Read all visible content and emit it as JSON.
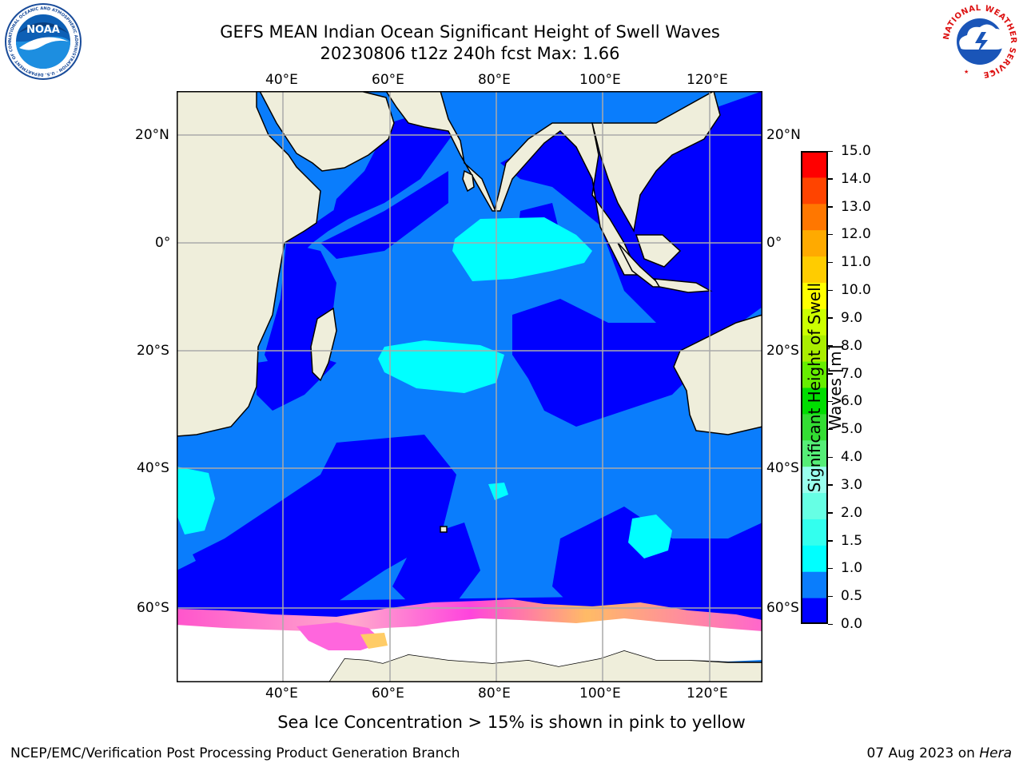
{
  "header": {
    "title_line1": "GEFS MEAN Indian Ocean Significant Height of Swell Waves",
    "title_line2": "20230806 t12z 240h fcst   Max: 1.66"
  },
  "logos": {
    "left": {
      "name": "noaa-logo",
      "text": "NOAA",
      "ring_text": "NATIONAL OCEANIC AND ATMOSPHERIC ADMINISTRATION · U.S. DEPARTMENT OF COMMERCE"
    },
    "right": {
      "name": "national-weather-service-logo",
      "ring_text": "NATIONAL WEATHER SERVICE"
    }
  },
  "map": {
    "lon_range": [
      20,
      130
    ],
    "lat_range": [
      -70,
      28
    ],
    "lon_ticks": [
      {
        "value": 40,
        "label": "40°E"
      },
      {
        "value": 60,
        "label": "60°E"
      },
      {
        "value": 80,
        "label": "80°E"
      },
      {
        "value": 100,
        "label": "100°E"
      },
      {
        "value": 120,
        "label": "120°E"
      }
    ],
    "lat_ticks": [
      {
        "value": 20,
        "label": "20°N"
      },
      {
        "value": 0,
        "label": "0°"
      },
      {
        "value": -20,
        "label": "20°S"
      },
      {
        "value": -40,
        "label": "40°S"
      },
      {
        "value": -60,
        "label": "60°S"
      }
    ],
    "gridlines": true,
    "colors": {
      "land": "#efeedb",
      "coast": "#000000",
      "grid": "#aaaaaa",
      "ice": "#ffffff",
      "ice_edge": [
        "#ff33dd",
        "#ff88cc",
        "#ffcc55",
        "#ff66aa"
      ]
    },
    "note": "Sea Ice Concentration > 15% is shown in pink to yellow"
  },
  "colorbar": {
    "title_line1": "Significant Height of Swell",
    "title_line2": "Waves [m]",
    "levels": [
      "0.0",
      "0.5",
      "1.0",
      "1.5",
      "2.0",
      "3.0",
      "4.0",
      "5.0",
      "6.0",
      "7.0",
      "8.0",
      "9.0",
      "10.0",
      "11.0",
      "12.0",
      "13.0",
      "14.0",
      "15.0"
    ],
    "colors": [
      "#0000ff",
      "#0a7dfc",
      "#00ffff",
      "#33ffee",
      "#66ffe4",
      "#99ffee",
      "#55ee77",
      "#33dd33",
      "#00dd00",
      "#66ee00",
      "#aaee00",
      "#ccff00",
      "#ffff00",
      "#ffcc00",
      "#ffaa00",
      "#ff7700",
      "#ff4400",
      "#ff0000"
    ]
  },
  "footer": {
    "left": "NCEP/EMC/Verification Post Processing Product Generation Branch",
    "right_date": "07 Aug 2023 on ",
    "right_machine": "Hera"
  }
}
